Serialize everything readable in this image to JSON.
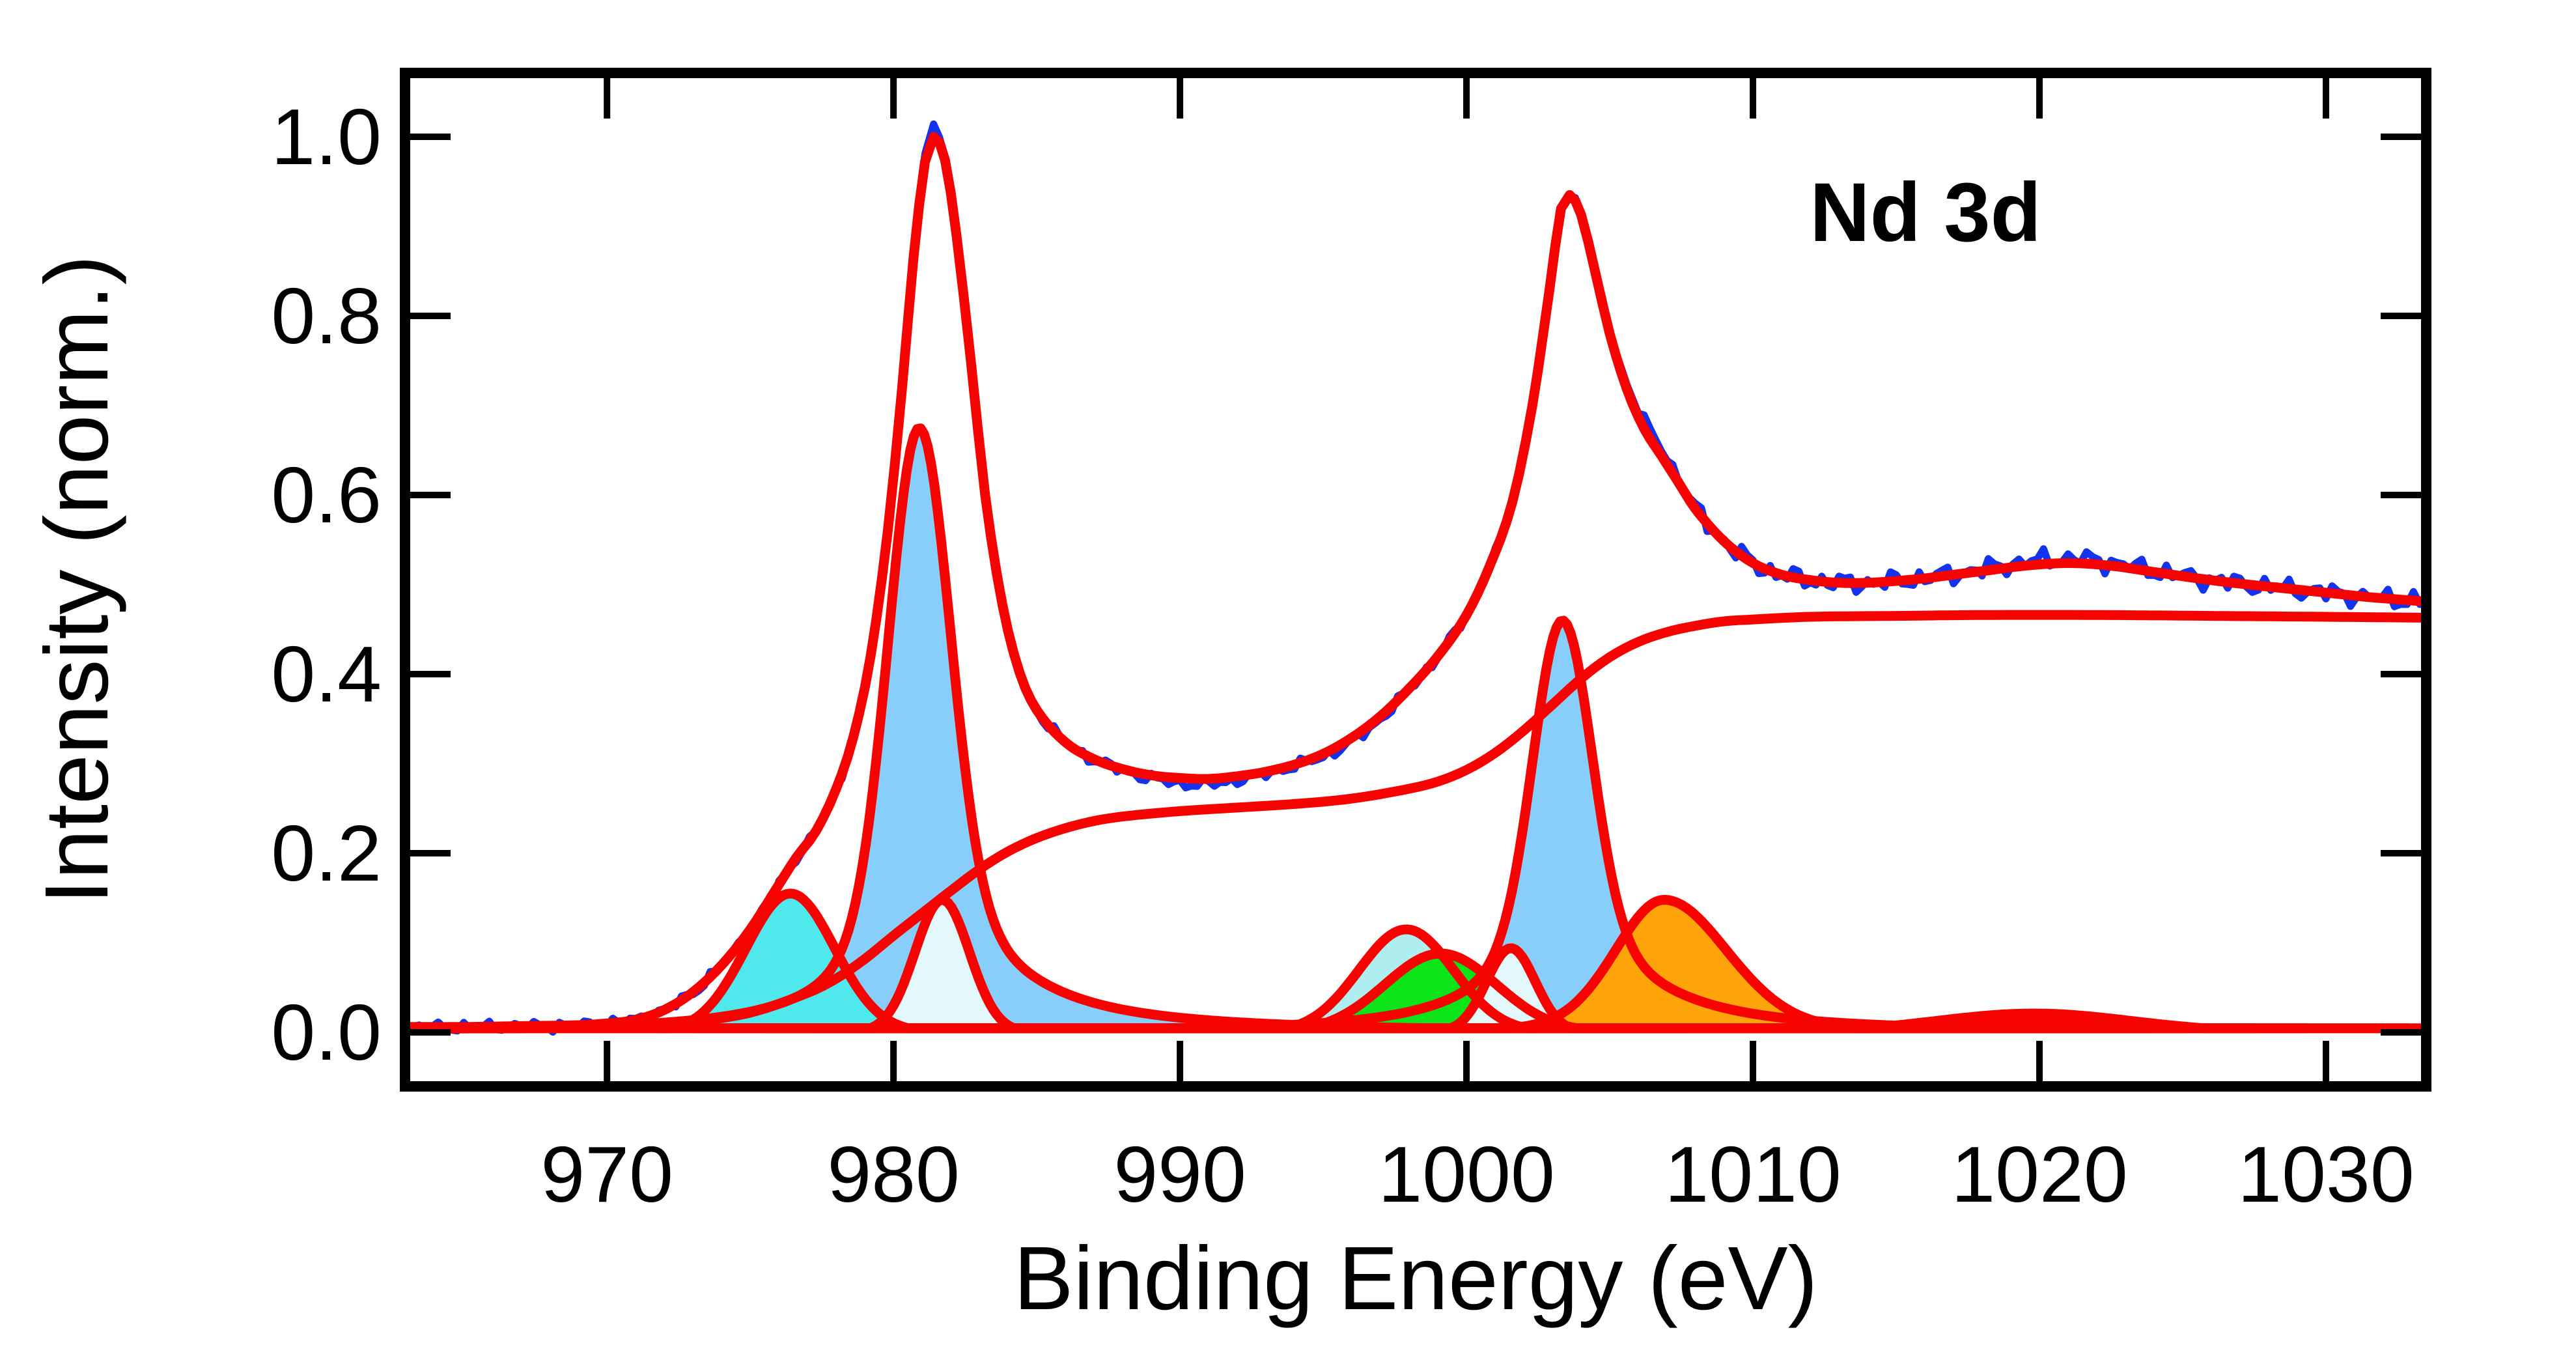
{
  "annotation": "Nd 3d",
  "chart_data": {
    "type": "area",
    "title": "Nd 3d",
    "xlabel": "Binding Energy (eV)",
    "ylabel": "Intensity (norm.)",
    "xlim": [
      962.95,
      1033.5
    ],
    "ylim": [
      -0.06,
      1.071
    ],
    "x_ticks": [
      970,
      980,
      990,
      1000,
      1010,
      1020,
      1030
    ],
    "y_ticks": [
      0.0,
      0.2,
      0.4,
      0.6,
      0.8,
      1.0
    ],
    "grid": false,
    "legend": "none",
    "colors": {
      "data_blue": "#1433EE",
      "fit_red": "#F60300",
      "axis_black": "#000000",
      "skyblue": "#87CEFA",
      "cyan_bright": "#4FE9ED",
      "cyan_pale": "#AFEEEE",
      "green": "#0BE418",
      "near_white": "#E3F8FB",
      "orange": "#FFA40A"
    },
    "baseline_intensity": 0.0045,
    "envelope_points": [
      [
        963,
        0.006
      ],
      [
        965,
        0.006
      ],
      [
        967,
        0.007
      ],
      [
        969,
        0.008
      ],
      [
        970,
        0.01
      ],
      [
        971,
        0.014
      ],
      [
        972,
        0.025
      ],
      [
        973,
        0.045
      ],
      [
        974,
        0.075
      ],
      [
        975,
        0.115
      ],
      [
        976,
        0.165
      ],
      [
        976.6,
        0.195
      ],
      [
        977.3,
        0.225
      ],
      [
        978,
        0.272
      ],
      [
        978.6,
        0.33
      ],
      [
        979.2,
        0.42
      ],
      [
        979.8,
        0.56
      ],
      [
        980.3,
        0.72
      ],
      [
        980.7,
        0.865
      ],
      [
        981.1,
        0.972
      ],
      [
        981.4,
        1.0
      ],
      [
        981.8,
        0.974
      ],
      [
        982.2,
        0.89
      ],
      [
        982.7,
        0.75
      ],
      [
        983.2,
        0.6
      ],
      [
        983.8,
        0.478
      ],
      [
        984.4,
        0.402
      ],
      [
        985,
        0.36
      ],
      [
        986,
        0.324
      ],
      [
        987,
        0.305
      ],
      [
        988,
        0.294
      ],
      [
        989,
        0.287
      ],
      [
        990,
        0.284
      ],
      [
        991,
        0.283
      ],
      [
        992,
        0.286
      ],
      [
        993,
        0.291
      ],
      [
        994,
        0.299
      ],
      [
        995,
        0.311
      ],
      [
        996,
        0.329
      ],
      [
        997,
        0.353
      ],
      [
        998,
        0.384
      ],
      [
        999,
        0.42
      ],
      [
        1000,
        0.466
      ],
      [
        1000.8,
        0.52
      ],
      [
        1001.6,
        0.592
      ],
      [
        1002.3,
        0.7
      ],
      [
        1002.9,
        0.83
      ],
      [
        1003.3,
        0.92
      ],
      [
        1003.6,
        0.935
      ],
      [
        1004,
        0.913
      ],
      [
        1004.5,
        0.848
      ],
      [
        1005,
        0.78
      ],
      [
        1005.6,
        0.718
      ],
      [
        1006.2,
        0.674
      ],
      [
        1006.8,
        0.644
      ],
      [
        1007.4,
        0.614
      ],
      [
        1008,
        0.584
      ],
      [
        1009,
        0.548
      ],
      [
        1010,
        0.524
      ],
      [
        1011,
        0.511
      ],
      [
        1012,
        0.505
      ],
      [
        1013,
        0.502
      ],
      [
        1014,
        0.502
      ],
      [
        1015,
        0.504
      ],
      [
        1016,
        0.507
      ],
      [
        1017,
        0.511
      ],
      [
        1018,
        0.515
      ],
      [
        1019.5,
        0.521
      ],
      [
        1021,
        0.524
      ],
      [
        1022.5,
        0.521
      ],
      [
        1024,
        0.514
      ],
      [
        1025.5,
        0.507
      ],
      [
        1027,
        0.501
      ],
      [
        1028.5,
        0.496
      ],
      [
        1030,
        0.491
      ],
      [
        1031.5,
        0.486
      ],
      [
        1033.5,
        0.481
      ]
    ],
    "background_points": [
      [
        963,
        0.004
      ],
      [
        968,
        0.005
      ],
      [
        971,
        0.007
      ],
      [
        973,
        0.012
      ],
      [
        975,
        0.022
      ],
      [
        977,
        0.044
      ],
      [
        978,
        0.06
      ],
      [
        979,
        0.082
      ],
      [
        980,
        0.108
      ],
      [
        981,
        0.133
      ],
      [
        982,
        0.158
      ],
      [
        983,
        0.182
      ],
      [
        984,
        0.202
      ],
      [
        985,
        0.217
      ],
      [
        986,
        0.228
      ],
      [
        987,
        0.236
      ],
      [
        988,
        0.241
      ],
      [
        990,
        0.247
      ],
      [
        992,
        0.251
      ],
      [
        994,
        0.255
      ],
      [
        996,
        0.261
      ],
      [
        998,
        0.272
      ],
      [
        999,
        0.28
      ],
      [
        1000,
        0.293
      ],
      [
        1001,
        0.312
      ],
      [
        1002,
        0.337
      ],
      [
        1003,
        0.366
      ],
      [
        1004,
        0.395
      ],
      [
        1005,
        0.419
      ],
      [
        1006,
        0.436
      ],
      [
        1007,
        0.447
      ],
      [
        1008,
        0.454
      ],
      [
        1009,
        0.459
      ],
      [
        1010,
        0.461
      ],
      [
        1012,
        0.464
      ],
      [
        1015,
        0.465
      ],
      [
        1018,
        0.466
      ],
      [
        1022,
        0.466
      ],
      [
        1026,
        0.465
      ],
      [
        1030,
        0.464
      ],
      [
        1033.5,
        0.463
      ]
    ],
    "components": [
      {
        "name": "main-3d52-skyblue",
        "color": "#87CEFA",
        "center": 980.9,
        "height": 0.675,
        "sigma_l": 1.05,
        "sigma_r": 1.05,
        "eta": 0.28,
        "gamma_l": 2.2,
        "gamma_r": 2.8
      },
      {
        "name": "main-3d32-skyblue",
        "color": "#87CEFA",
        "center": 1003.35,
        "height": 0.46,
        "sigma_l": 1.0,
        "sigma_r": 1.0,
        "eta": 0.3,
        "gamma_l": 2.4,
        "gamma_r": 2.8
      },
      {
        "name": "satellite-cyan-low",
        "color": "#4FE9ED",
        "center": 976.4,
        "height": 0.155,
        "sigma_l": 1.55,
        "sigma_r": 1.55,
        "eta": 0,
        "gamma_l": 1,
        "gamma_r": 1
      },
      {
        "name": "satellite-cyan-high",
        "color": "#AFEEEE",
        "center": 997.9,
        "height": 0.115,
        "sigma_l": 1.65,
        "sigma_r": 1.65,
        "eta": 0,
        "gamma_l": 1,
        "gamma_r": 1
      },
      {
        "name": "satellite-green",
        "color": "#0BE418",
        "center": 999.1,
        "height": 0.088,
        "sigma_l": 1.95,
        "sigma_r": 1.95,
        "eta": 0,
        "gamma_l": 1,
        "gamma_r": 1
      },
      {
        "name": "satellite-pale-low",
        "color": "#E3F8FB",
        "center": 981.7,
        "height": 0.148,
        "sigma_l": 0.95,
        "sigma_r": 0.95,
        "eta": 0,
        "gamma_l": 1,
        "gamma_r": 1
      },
      {
        "name": "satellite-pale-high",
        "color": "#E3F8FB",
        "center": 1001.55,
        "height": 0.094,
        "sigma_l": 0.85,
        "sigma_r": 0.85,
        "eta": 0,
        "gamma_l": 1,
        "gamma_r": 1
      },
      {
        "name": "satellite-orange",
        "color": "#FFA40A",
        "center": 1006.9,
        "height": 0.148,
        "sigma_l": 1.7,
        "sigma_r": 2.2,
        "eta": 0.15,
        "gamma_l": 2.5,
        "gamma_r": 3.0
      },
      {
        "name": "satellite-red-bump",
        "color": "#F60300",
        "center": 1019.8,
        "height": 0.021,
        "sigma_l": 3.4,
        "sigma_r": 3.4,
        "eta": 0,
        "gamma_l": 1,
        "gamma_r": 1
      }
    ],
    "noise": {
      "terms": [
        [
          0.0035,
          7.3,
          0.5
        ],
        [
          0.0025,
          13.1,
          2.1
        ],
        [
          0.002,
          3.7,
          4.2
        ]
      ],
      "right_boost_from": 1008,
      "right_boost_factor": 1.8,
      "bumps": [
        [
          981.3,
          0.5,
          0.012
        ],
        [
          1006.4,
          0.9,
          0.009
        ],
        [
          990.6,
          1.5,
          -0.006
        ],
        [
          1020.8,
          2.0,
          0.005
        ],
        [
          996,
          1.2,
          -0.004
        ]
      ]
    }
  }
}
